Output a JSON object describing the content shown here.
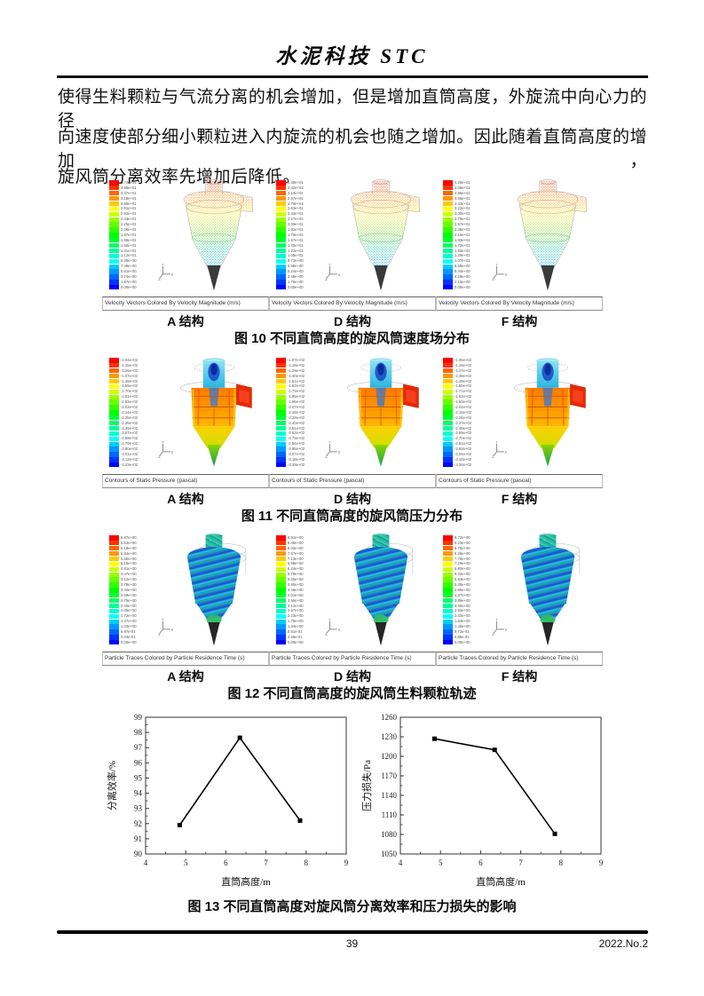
{
  "header": {
    "journal_title": "水泥科技 STC"
  },
  "body_text": {
    "line1": "使得生料颗粒与气流分离的机会增加，但是增加直筒高度，外旋流中向心力的径",
    "line2": "向速度使部分细小颗粒进入内旋流的机会也随之增加。因此随着直筒高度的增加，",
    "line3": "旋风筒分离效率先增加后降低。"
  },
  "figures": [
    {
      "caption": "图 10  不同直筒高度的旋风筒速度场分布",
      "panel_footer": "Velocity Vectors Colored By Velocity Magnitude (m/s)",
      "panels": [
        {
          "label": "A 结构",
          "legend": [
            "3.74e+01",
            "3.55e+01",
            "3.37e+01",
            "3.18e+01",
            "2.99e+01",
            "2.81e+01",
            "2.62e+01",
            "2.43e+01",
            "2.25e+01",
            "2.06e+01",
            "1.87e+01",
            "1.68e+01",
            "1.50e+01",
            "1.31e+01",
            "1.12e+01",
            "9.35e+00",
            "7.48e+00",
            "5.61e+00",
            "3.74e+00",
            "1.87e+00",
            "0.00e+00"
          ]
        },
        {
          "label": "D 结构",
          "legend": [
            "3.49e+01",
            "3.32e+01",
            "3.14e+01",
            "2.97e+01",
            "2.79e+01",
            "2.62e+01",
            "2.44e+01",
            "2.27e+01",
            "2.09e+01",
            "1.92e+01",
            "1.75e+01",
            "1.57e+01",
            "1.40e+01",
            "1.22e+01",
            "1.05e+01",
            "8.73e+00",
            "6.98e+00",
            "5.24e+00",
            "3.49e+00",
            "1.75e+00",
            "0.00e+00"
          ]
        },
        {
          "label": "F 结构",
          "legend": [
            "4.29e+01",
            "4.08e+01",
            "3.86e+01",
            "3.65e+01",
            "3.43e+01",
            "3.22e+01",
            "3.00e+01",
            "2.79e+01",
            "2.57e+01",
            "2.36e+01",
            "2.15e+01",
            "1.93e+01",
            "1.72e+01",
            "1.50e+01",
            "1.29e+01",
            "1.07e+01",
            "8.58e+00",
            "6.44e+00",
            "4.29e+00",
            "2.15e+00",
            "0.00e+00"
          ]
        }
      ]
    },
    {
      "caption": "图 11  不同直筒高度的旋风筒压力分布",
      "panel_footer": "Contours of Static Pressure (pascal)",
      "panels": [
        {
          "label": "A 结构",
          "legend": [
            "-1.04e+02",
            "-1.15e+02",
            "-1.26e+02",
            "-1.37e+02",
            "-1.48e+02",
            "-1.59e+02",
            "-1.70e+02",
            "-1.81e+02",
            "-1.92e+02",
            "-2.03e+02",
            "-2.14e+02",
            "-2.25e+02",
            "-2.36e+02",
            "-2.46e+02",
            "-2.57e+02",
            "-2.68e+02",
            "-2.79e+02",
            "-2.90e+02",
            "-3.01e+02",
            "-3.12e+02",
            "-3.23e+02"
          ]
        },
        {
          "label": "D 结构",
          "legend": [
            "-1.07e+02",
            "-1.18e+02",
            "-1.29e+02",
            "-1.40e+02",
            "-1.51e+02",
            "-1.62e+02",
            "-1.73e+02",
            "-1.85e+02",
            "-1.96e+02",
            "-2.07e+02",
            "-2.18e+02",
            "-2.29e+02",
            "-2.40e+02",
            "-2.51e+02",
            "-2.62e+02",
            "-2.73e+02",
            "-2.84e+02",
            "-2.95e+02",
            "-3.07e+02",
            "-3.18e+02",
            "-3.29e+02"
          ]
        },
        {
          "label": "F 结构",
          "legend": [
            "-1.05e+02",
            "-1.16e+02",
            "-1.27e+02",
            "-1.38e+02",
            "-1.49e+02",
            "-1.60e+02",
            "-1.71e+02",
            "-1.82e+02",
            "-1.93e+02",
            "-2.04e+02",
            "-2.15e+02",
            "-2.26e+02",
            "-2.37e+02",
            "-2.48e+02",
            "-2.59e+02",
            "-2.70e+02",
            "-2.81e+02",
            "-2.93e+02",
            "-3.04e+02",
            "-3.15e+02",
            "-3.26e+02"
          ]
        }
      ]
    },
    {
      "caption": "图 12  不同直筒高度的旋风筒生料颗粒轨迹",
      "panel_footer": "Particle Traces Colored by Particle Residence Time (s)",
      "panels": [
        {
          "label": "A 结构",
          "legend": [
            "6.87e+00",
            "6.53e+00",
            "6.18e+00",
            "5.84e+00",
            "5.50e+00",
            "5.15e+00",
            "4.81e+00",
            "4.47e+00",
            "4.12e+00",
            "3.78e+00",
            "3.44e+00",
            "3.09e+00",
            "2.75e+00",
            "2.40e+00",
            "2.06e+00",
            "1.72e+00",
            "1.37e+00",
            "1.03e+00",
            "6.87e-01",
            "3.44e-01",
            "0.00e+00"
          ]
        },
        {
          "label": "D 结构",
          "legend": [
            "8.91e+00",
            "8.46e+00",
            "8.02e+00",
            "7.57e+00",
            "7.13e+00",
            "6.68e+00",
            "6.24e+00",
            "5.79e+00",
            "5.35e+00",
            "4.90e+00",
            "4.46e+00",
            "4.01e+00",
            "3.56e+00",
            "3.12e+00",
            "2.67e+00",
            "2.23e+00",
            "1.78e+00",
            "1.34e+00",
            "8.91e-01",
            "4.46e-01",
            "0.00e+00"
          ]
        },
        {
          "label": "F 结构",
          "legend": [
            "9.72e+00",
            "9.23e+00",
            "8.75e+00",
            "8.26e+00",
            "7.78e+00",
            "7.29e+00",
            "6.80e+00",
            "6.32e+00",
            "5.83e+00",
            "5.35e+00",
            "4.86e+00",
            "4.37e+00",
            "3.89e+00",
            "3.40e+00",
            "2.92e+00",
            "2.43e+00",
            "1.94e+00",
            "1.46e+00",
            "9.72e-01",
            "4.86e-01",
            "0.00e+00"
          ]
        }
      ]
    }
  ],
  "axis_triad": {
    "x": "X",
    "y": "Y",
    "z": "Z"
  },
  "chart_data": [
    {
      "type": "line",
      "x": [
        4.85,
        6.35,
        7.85
      ],
      "y": [
        91.9,
        97.65,
        92.2
      ],
      "xlabel": "直筒高度/m",
      "ylabel": "分离效率/%",
      "xlim": [
        4,
        9
      ],
      "ylim": [
        90,
        99
      ],
      "xtick_step": 1,
      "ytick_step": 1,
      "grid": false,
      "legend_position": "none",
      "marker": "square",
      "line_color": "#000000"
    },
    {
      "type": "line",
      "x": [
        4.85,
        6.35,
        7.85
      ],
      "y": [
        1227,
        1210,
        1081
      ],
      "xlabel": "直筒高度/m",
      "ylabel": "压力损失/Pa",
      "xlim": [
        4,
        9
      ],
      "ylim": [
        1050,
        1260
      ],
      "xtick_step": 1,
      "ytick_step": 30,
      "grid": false,
      "legend_position": "none",
      "marker": "square",
      "line_color": "#000000"
    }
  ],
  "fig13_caption": "图 13  不同直筒高度对旋风筒分离效率和压力损失的影响",
  "footer": {
    "page_number": "39",
    "issue": "2022.No.2"
  }
}
